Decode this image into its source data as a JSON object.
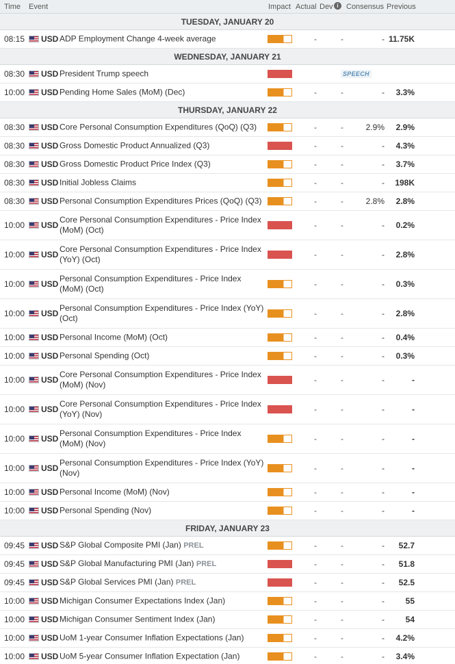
{
  "header": {
    "time": "Time",
    "event": "Event",
    "impact": "Impact",
    "actual": "Actual",
    "dev": "Dev",
    "info_icon": "i",
    "consensus": "Consensus",
    "previous": "Previous"
  },
  "colors": {
    "high": "#d9534f",
    "medium": "#e8901f"
  },
  "days": [
    {
      "label": "TUESDAY, JANUARY 20",
      "events": [
        {
          "time": "08:15",
          "currency": "USD",
          "name": "ADP Employment Change 4-week average",
          "impact": "medium",
          "actual": "-",
          "dev": "-",
          "consensus": "-",
          "previous": "11.75K"
        }
      ]
    },
    {
      "label": "WEDNESDAY, JANUARY 21",
      "events": [
        {
          "time": "08:30",
          "currency": "USD",
          "name": "President Trump speech",
          "impact": "high",
          "tag": "SPEECH"
        },
        {
          "time": "10:00",
          "currency": "USD",
          "name": "Pending Home Sales (MoM) (Dec)",
          "impact": "medium",
          "actual": "-",
          "dev": "-",
          "consensus": "-",
          "previous": "3.3%"
        }
      ]
    },
    {
      "label": "THURSDAY, JANUARY 22",
      "events": [
        {
          "time": "08:30",
          "currency": "USD",
          "name": "Core Personal Consumption Expenditures (QoQ) (Q3)",
          "impact": "medium",
          "actual": "-",
          "dev": "-",
          "consensus": "2.9%",
          "previous": "2.9%"
        },
        {
          "time": "08:30",
          "currency": "USD",
          "name": "Gross Domestic Product Annualized (Q3)",
          "impact": "high",
          "actual": "-",
          "dev": "-",
          "consensus": "-",
          "previous": "4.3%"
        },
        {
          "time": "08:30",
          "currency": "USD",
          "name": "Gross Domestic Product Price Index (Q3)",
          "impact": "medium",
          "actual": "-",
          "dev": "-",
          "consensus": "-",
          "previous": "3.7%"
        },
        {
          "time": "08:30",
          "currency": "USD",
          "name": "Initial Jobless Claims",
          "impact": "medium",
          "actual": "-",
          "dev": "-",
          "consensus": "-",
          "previous": "198K"
        },
        {
          "time": "08:30",
          "currency": "USD",
          "name": "Personal Consumption Expenditures Prices (QoQ) (Q3)",
          "impact": "medium",
          "actual": "-",
          "dev": "-",
          "consensus": "2.8%",
          "previous": "2.8%"
        },
        {
          "time": "10:00",
          "currency": "USD",
          "name": "Core Personal Consumption Expenditures - Price Index (MoM) (Oct)",
          "impact": "high",
          "actual": "-",
          "dev": "-",
          "consensus": "-",
          "previous": "0.2%"
        },
        {
          "time": "10:00",
          "currency": "USD",
          "name": "Core Personal Consumption Expenditures - Price Index (YoY) (Oct)",
          "impact": "high",
          "actual": "-",
          "dev": "-",
          "consensus": "-",
          "previous": "2.8%"
        },
        {
          "time": "10:00",
          "currency": "USD",
          "name": "Personal Consumption Expenditures - Price Index (MoM) (Oct)",
          "impact": "medium",
          "actual": "-",
          "dev": "-",
          "consensus": "-",
          "previous": "0.3%"
        },
        {
          "time": "10:00",
          "currency": "USD",
          "name": "Personal Consumption Expenditures - Price Index (YoY) (Oct)",
          "impact": "medium",
          "actual": "-",
          "dev": "-",
          "consensus": "-",
          "previous": "2.8%"
        },
        {
          "time": "10:00",
          "currency": "USD",
          "name": "Personal Income (MoM) (Oct)",
          "impact": "medium",
          "actual": "-",
          "dev": "-",
          "consensus": "-",
          "previous": "0.4%"
        },
        {
          "time": "10:00",
          "currency": "USD",
          "name": "Personal Spending (Oct)",
          "impact": "medium",
          "actual": "-",
          "dev": "-",
          "consensus": "-",
          "previous": "0.3%"
        },
        {
          "time": "10:00",
          "currency": "USD",
          "name": "Core Personal Consumption Expenditures - Price Index (MoM) (Nov)",
          "impact": "high",
          "actual": "-",
          "dev": "-",
          "consensus": "-",
          "previous": "-"
        },
        {
          "time": "10:00",
          "currency": "USD",
          "name": "Core Personal Consumption Expenditures - Price Index (YoY) (Nov)",
          "impact": "high",
          "actual": "-",
          "dev": "-",
          "consensus": "-",
          "previous": "-"
        },
        {
          "time": "10:00",
          "currency": "USD",
          "name": "Personal Consumption Expenditures - Price Index (MoM) (Nov)",
          "impact": "medium",
          "actual": "-",
          "dev": "-",
          "consensus": "-",
          "previous": "-"
        },
        {
          "time": "10:00",
          "currency": "USD",
          "name": "Personal Consumption Expenditures - Price Index (YoY) (Nov)",
          "impact": "medium",
          "actual": "-",
          "dev": "-",
          "consensus": "-",
          "previous": "-"
        },
        {
          "time": "10:00",
          "currency": "USD",
          "name": "Personal Income (MoM) (Nov)",
          "impact": "medium",
          "actual": "-",
          "dev": "-",
          "consensus": "-",
          "previous": "-"
        },
        {
          "time": "10:00",
          "currency": "USD",
          "name": "Personal Spending (Nov)",
          "impact": "medium",
          "actual": "-",
          "dev": "-",
          "consensus": "-",
          "previous": "-"
        }
      ]
    },
    {
      "label": "FRIDAY, JANUARY 23",
      "events": [
        {
          "time": "09:45",
          "currency": "USD",
          "name": "S&P Global Composite PMI (Jan)",
          "suffix": "PREL",
          "impact": "medium",
          "actual": "-",
          "dev": "-",
          "consensus": "-",
          "previous": "52.7"
        },
        {
          "time": "09:45",
          "currency": "USD",
          "name": "S&P Global Manufacturing PMI (Jan)",
          "suffix": "PREL",
          "impact": "high",
          "actual": "-",
          "dev": "-",
          "consensus": "-",
          "previous": "51.8"
        },
        {
          "time": "09:45",
          "currency": "USD",
          "name": "S&P Global Services PMI (Jan)",
          "suffix": "PREL",
          "impact": "high",
          "actual": "-",
          "dev": "-",
          "consensus": "-",
          "previous": "52.5"
        },
        {
          "time": "10:00",
          "currency": "USD",
          "name": "Michigan Consumer Expectations Index (Jan)",
          "impact": "medium",
          "actual": "-",
          "dev": "-",
          "consensus": "-",
          "previous": "55"
        },
        {
          "time": "10:00",
          "currency": "USD",
          "name": "Michigan Consumer Sentiment Index (Jan)",
          "impact": "medium",
          "actual": "-",
          "dev": "-",
          "consensus": "-",
          "previous": "54"
        },
        {
          "time": "10:00",
          "currency": "USD",
          "name": "UoM 1-year Consumer Inflation Expectations (Jan)",
          "impact": "medium",
          "actual": "-",
          "dev": "-",
          "consensus": "-",
          "previous": "4.2%"
        },
        {
          "time": "10:00",
          "currency": "USD",
          "name": "UoM 5-year Consumer Inflation Expectation (Jan)",
          "impact": "medium",
          "actual": "-",
          "dev": "-",
          "consensus": "-",
          "previous": "3.4%"
        }
      ]
    }
  ]
}
